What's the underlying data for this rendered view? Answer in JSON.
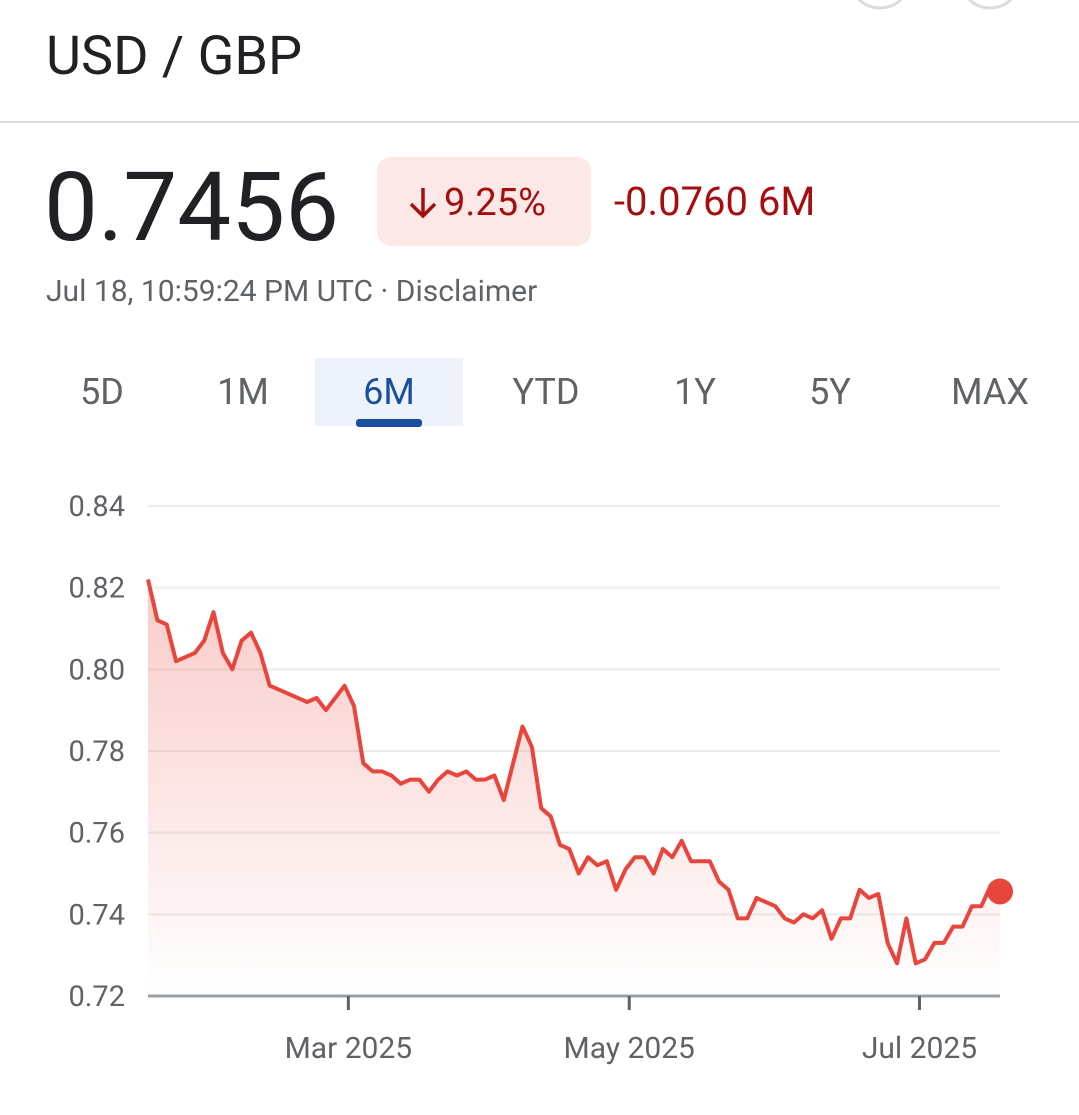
{
  "header": {
    "title": "USD / GBP"
  },
  "quote": {
    "price": "0.7456",
    "change_percent": "9.25%",
    "change": "-0.0760 6M",
    "timestamp": "Jul 18, 10:59:24 PM UTC ·",
    "disclaimer": "Disclaimer"
  },
  "ranges": {
    "options": [
      "5D",
      "1M",
      "6M",
      "YTD",
      "1Y",
      "5Y",
      "MAX"
    ],
    "selected": 2
  },
  "chart_data": {
    "type": "line",
    "color": "#e8453c",
    "area": true,
    "grid": true,
    "values": [
      0.822,
      0.812,
      0.811,
      0.802,
      0.803,
      0.804,
      0.807,
      0.814,
      0.804,
      0.8,
      0.807,
      0.809,
      0.804,
      0.796,
      0.795,
      0.794,
      0.793,
      0.792,
      0.793,
      0.79,
      0.793,
      0.796,
      0.791,
      0.777,
      0.775,
      0.775,
      0.774,
      0.772,
      0.773,
      0.773,
      0.77,
      0.773,
      0.775,
      0.774,
      0.775,
      0.773,
      0.773,
      0.774,
      0.768,
      0.777,
      0.786,
      0.781,
      0.766,
      0.764,
      0.757,
      0.756,
      0.75,
      0.754,
      0.752,
      0.753,
      0.746,
      0.751,
      0.754,
      0.754,
      0.75,
      0.756,
      0.754,
      0.758,
      0.753,
      0.753,
      0.753,
      0.748,
      0.746,
      0.739,
      0.739,
      0.744,
      0.743,
      0.742,
      0.739,
      0.738,
      0.74,
      0.739,
      0.741,
      0.734,
      0.739,
      0.739,
      0.746,
      0.744,
      0.745,
      0.733,
      0.728,
      0.739,
      0.728,
      0.729,
      0.733,
      0.733,
      0.737,
      0.737,
      0.742,
      0.742,
      0.747,
      0.7456
    ],
    "xlim": [
      0,
      91
    ],
    "xticks": [
      {
        "value": 21.4,
        "label": "Mar 2025"
      },
      {
        "value": 51.4,
        "label": "May 2025"
      },
      {
        "value": 82.4,
        "label": "Jul 2025"
      }
    ],
    "ylim": [
      0.72,
      0.84
    ],
    "yticks": [
      0.72,
      0.74,
      0.76,
      0.78,
      {
        "value": 0.8,
        "label": "0.80"
      },
      0.82,
      0.84
    ]
  }
}
